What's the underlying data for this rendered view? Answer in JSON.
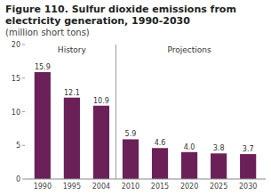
{
  "chart_data": {
    "type": "bar",
    "title": "Figure 110. Sulfur dioxide emissions from electricity generation, 1990-2030",
    "subtitle": "(million short tons)",
    "categories": [
      "1990",
      "1995",
      "2004",
      "2010",
      "2015",
      "2020",
      "2025",
      "2030"
    ],
    "values": [
      15.9,
      12.1,
      10.9,
      5.9,
      4.6,
      4.0,
      3.8,
      3.7
    ],
    "value_labels": [
      "15.9",
      "12.1",
      "10.9",
      "5.9",
      "4.6",
      "4.0",
      "3.8",
      "3.7"
    ],
    "data_labels": true,
    "color": "#6B2158",
    "ylim": [
      0,
      20
    ],
    "yticks": [
      0,
      5,
      10,
      15,
      20
    ],
    "grid": false,
    "annotations": [
      {
        "text": "History",
        "from": "1990",
        "to": "2004"
      },
      {
        "text": "Projections",
        "from": "2010",
        "to": "2030"
      }
    ]
  }
}
